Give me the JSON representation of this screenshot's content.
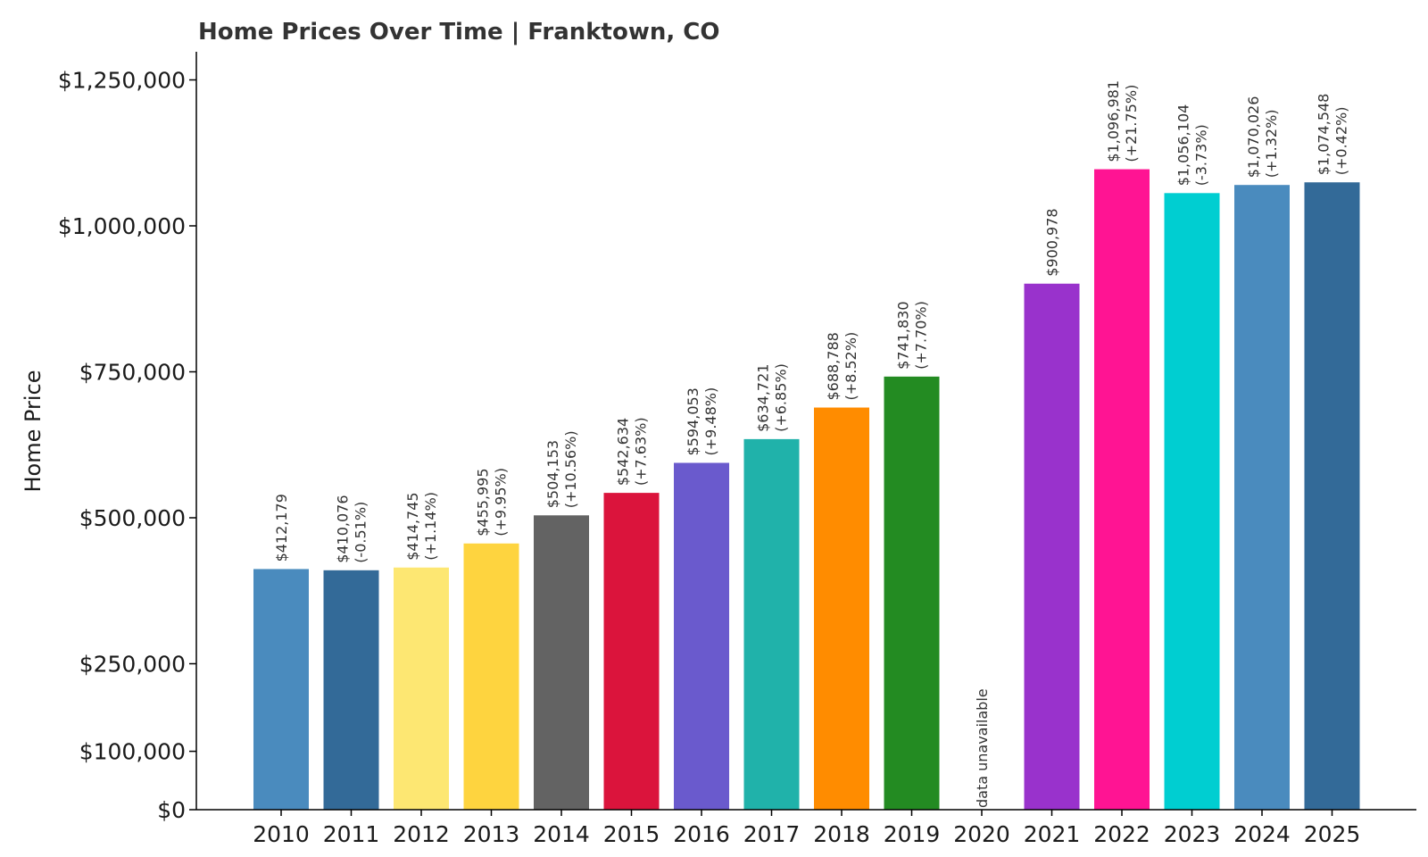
{
  "chart_data": {
    "type": "bar",
    "title": "Home Prices Over Time | Franktown, CO",
    "ylabel": "Home Price",
    "xlabel": "",
    "ylim": [
      0,
      1300000
    ],
    "grid": false,
    "legend": "none",
    "yticks": [
      {
        "value": 0,
        "label": "$0"
      },
      {
        "value": 100000,
        "label": "$100,000"
      },
      {
        "value": 250000,
        "label": "$250,000"
      },
      {
        "value": 500000,
        "label": "$500,000"
      },
      {
        "value": 750000,
        "label": "$750,000"
      },
      {
        "value": 1000000,
        "label": "$1,000,000"
      },
      {
        "value": 1250000,
        "label": "$1,250,000"
      }
    ],
    "categories": [
      "2010",
      "2011",
      "2012",
      "2013",
      "2014",
      "2015",
      "2016",
      "2017",
      "2018",
      "2019",
      "2020",
      "2021",
      "2022",
      "2023",
      "2024",
      "2025"
    ],
    "values": [
      412179,
      410076,
      414745,
      455995,
      504153,
      542634,
      594053,
      634721,
      688788,
      741830,
      null,
      900978,
      1096981,
      1056104,
      1070026,
      1074548
    ],
    "price_labels": [
      "$412,179",
      "$410,076",
      "$414,745",
      "$455,995",
      "$504,153",
      "$542,634",
      "$594,053",
      "$634,721",
      "$688,788",
      "$741,830",
      "data unavailable",
      "$900,978",
      "$1,096,981",
      "$1,056,104",
      "$1,070,026",
      "$1,074,548"
    ],
    "change_labels": [
      "",
      "(-0.51%)",
      "(+1.14%)",
      "(+9.95%)",
      "(+10.56%)",
      "(+7.63%)",
      "(+9.48%)",
      "(+6.85%)",
      "(+8.52%)",
      "(+7.70%)",
      "",
      "",
      "(+21.75%)",
      "(-3.73%)",
      "(+1.32%)",
      "(+0.42%)"
    ],
    "colors": [
      "#4a8bbe",
      "#336a98",
      "#fde772",
      "#fed43f",
      "#636363",
      "#db143c",
      "#6a5acd",
      "#20b2aa",
      "#ff8c00",
      "#238b22",
      "#ffffff",
      "#9932cc",
      "#ff1493",
      "#00ced1",
      "#4a8bbe",
      "#336a98"
    ]
  }
}
